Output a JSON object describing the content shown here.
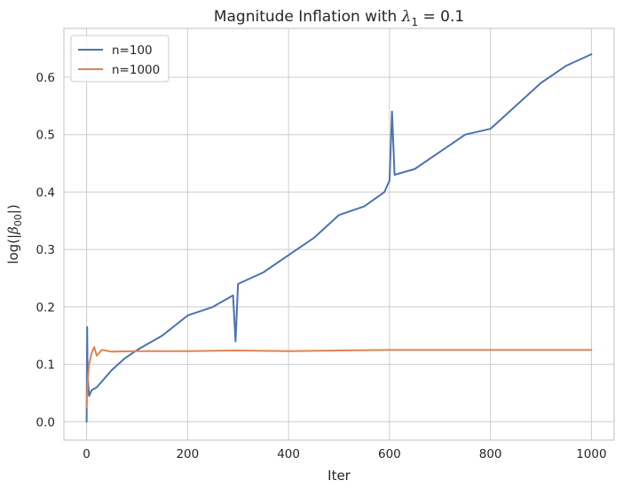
{
  "chart_data": {
    "type": "line",
    "title": "Magnitude Inflation with λ₁ = 0.1",
    "title_parts": {
      "prefix": "Magnitude Inflation with ",
      "symbol": "λ",
      "subscript": "1",
      "suffix": " = 0.1"
    },
    "xlabel": "Iter",
    "ylabel_parts": {
      "prefix": "log(|",
      "symbol": "β",
      "subscript": "00",
      "suffix": "|)"
    },
    "xlim": [
      -45,
      1045
    ],
    "ylim": [
      -0.032,
      0.685
    ],
    "xticks": [
      0,
      200,
      400,
      600,
      800,
      1000
    ],
    "xtick_labels": [
      "0",
      "200",
      "400",
      "600",
      "800",
      "1000"
    ],
    "yticks": [
      0.0,
      0.1,
      0.2,
      0.3,
      0.4,
      0.5,
      0.6
    ],
    "ytick_labels": [
      "0.0",
      "0.1",
      "0.2",
      "0.3",
      "0.4",
      "0.5",
      "0.6"
    ],
    "grid": true,
    "legend_position": "upper-left",
    "series": [
      {
        "name": "n=100",
        "color": "#4c72b0",
        "x": [
          0,
          1,
          2,
          5,
          10,
          20,
          30,
          50,
          75,
          100,
          150,
          200,
          250,
          290,
          295,
          300,
          350,
          400,
          450,
          500,
          550,
          590,
          600,
          605,
          610,
          650,
          700,
          750,
          800,
          850,
          900,
          950,
          1000
        ],
        "y": [
          0.0,
          0.165,
          0.08,
          0.045,
          0.055,
          0.06,
          0.07,
          0.09,
          0.11,
          0.125,
          0.15,
          0.185,
          0.2,
          0.22,
          0.14,
          0.24,
          0.26,
          0.29,
          0.32,
          0.36,
          0.375,
          0.4,
          0.42,
          0.54,
          0.43,
          0.44,
          0.47,
          0.5,
          0.51,
          0.55,
          0.59,
          0.62,
          0.64
        ]
      },
      {
        "name": "n=1000",
        "color": "#dd8452",
        "x": [
          0,
          2,
          5,
          10,
          15,
          20,
          30,
          50,
          100,
          200,
          300,
          400,
          500,
          600,
          700,
          800,
          900,
          1000
        ],
        "y": [
          0.025,
          0.07,
          0.1,
          0.12,
          0.13,
          0.115,
          0.125,
          0.122,
          0.123,
          0.123,
          0.124,
          0.123,
          0.124,
          0.125,
          0.125,
          0.125,
          0.125,
          0.125
        ]
      }
    ]
  }
}
